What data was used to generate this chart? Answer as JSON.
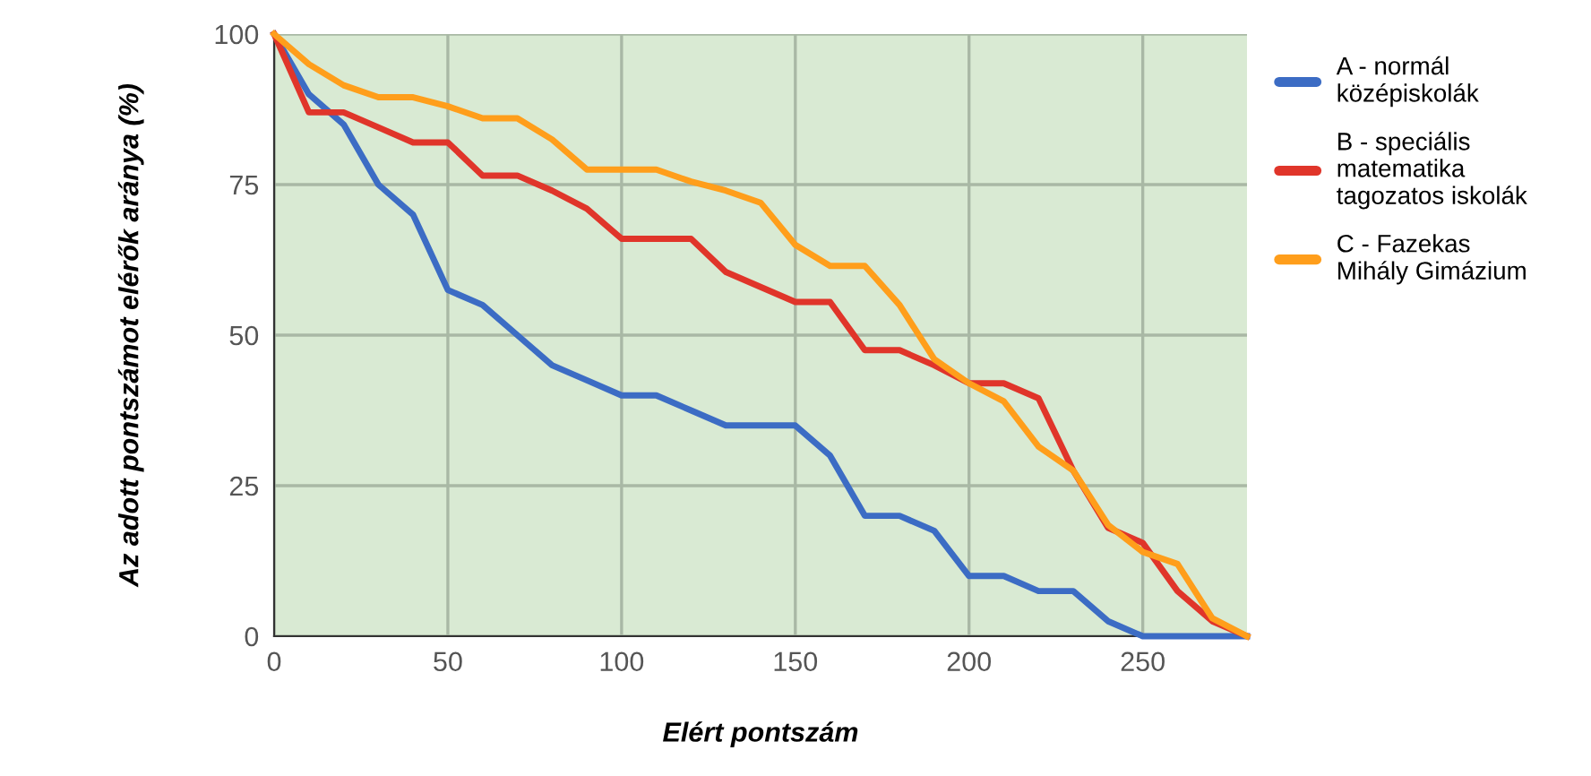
{
  "chart_data": {
    "type": "line",
    "xlabel": "Elért pontszám",
    "ylabel": "Az adott pontszámot elérők aránya (%)",
    "x": [
      0,
      10,
      20,
      30,
      40,
      50,
      60,
      70,
      80,
      90,
      100,
      110,
      120,
      130,
      140,
      150,
      160,
      170,
      180,
      190,
      200,
      210,
      220,
      230,
      240,
      250,
      260,
      270,
      280
    ],
    "series": [
      {
        "name": "A - normál középiskolák",
        "color": "#3c6cc4",
        "values": [
          100,
          90,
          85,
          75,
          70,
          57.5,
          55,
          50,
          45,
          42.5,
          40,
          40,
          37.5,
          35,
          35,
          35,
          30,
          20,
          20,
          17.5,
          10,
          10,
          7.5,
          7.5,
          2.5,
          0,
          0,
          0,
          0
        ]
      },
      {
        "name": "B - speciális matematika tagozatos iskolák",
        "color": "#e0352a",
        "values": [
          100,
          87,
          87,
          84.5,
          82,
          82,
          76.5,
          76.5,
          74,
          71,
          66,
          66,
          66,
          60.5,
          58,
          55.5,
          55.5,
          47.5,
          47.5,
          45,
          42,
          42,
          39.5,
          27.5,
          18,
          15.5,
          7.5,
          2.5,
          0
        ]
      },
      {
        "name": "C - Fazekas Mihály Gimázium",
        "color": "#ff9e1b",
        "values": [
          100,
          95,
          91.5,
          89.5,
          89.5,
          88,
          86,
          86,
          82.5,
          77.5,
          77.5,
          77.5,
          75.5,
          74,
          72,
          65,
          61.5,
          61.5,
          55,
          46,
          42,
          39,
          31.5,
          27.5,
          18.5,
          14,
          12,
          3,
          0
        ]
      }
    ],
    "xlim": [
      0,
      280
    ],
    "xticks": [
      0,
      50,
      100,
      150,
      200,
      250
    ],
    "ylim": [
      0,
      100
    ],
    "yticks": [
      0,
      25,
      50,
      75,
      100
    ],
    "grid": true,
    "legend": "right",
    "marker": "none",
    "line_style": "solid"
  }
}
